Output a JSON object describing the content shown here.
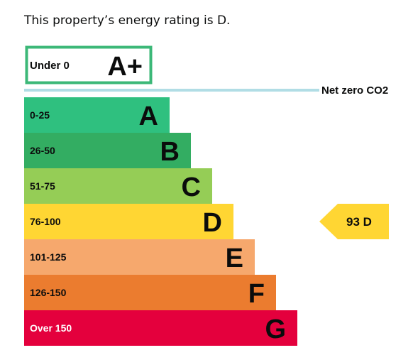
{
  "summary_text": "This property’s energy rating is D.",
  "colors": {
    "aplus_border": "#3cb878",
    "net_zero_line": "#b1dde5",
    "pointer": "#ffd633",
    "text": "#0b0c0c"
  },
  "chart_data": {
    "type": "bar",
    "title": "",
    "top_band": {
      "range": "Under 0",
      "letter": "A+"
    },
    "net_zero_label": "Net zero CO2",
    "bands": [
      {
        "range": "0-25",
        "letter": "A",
        "color": "#2fc07f"
      },
      {
        "range": "26-50",
        "letter": "B",
        "color": "#33ad62"
      },
      {
        "range": "51-75",
        "letter": "C",
        "color": "#95cd56"
      },
      {
        "range": "76-100",
        "letter": "D",
        "color": "#ffd633"
      },
      {
        "range": "101-125",
        "letter": "E",
        "color": "#f6a86d"
      },
      {
        "range": "126-150",
        "letter": "F",
        "color": "#eb7c2f"
      },
      {
        "range": "Over 150",
        "letter": "G",
        "color": "#e4003d"
      }
    ],
    "current_rating": {
      "value": 93,
      "letter": "D",
      "label": "93  D"
    }
  }
}
